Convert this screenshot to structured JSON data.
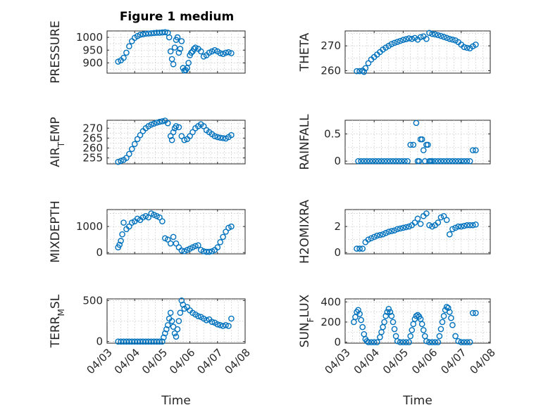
{
  "figure": {
    "title": "Figure 1 medium",
    "marker_color": "#0072BD",
    "grid": true
  },
  "chart_data": [
    {
      "type": "scatter",
      "ylabel": "PRESSURE",
      "xlabel": "",
      "ylim": [
        860,
        1025
      ],
      "yticks": [
        "900",
        "950",
        "1000"
      ],
      "ytick_values": [
        900,
        950,
        1000
      ],
      "xlim": [
        0,
        5
      ],
      "show_xticklabels": false,
      "x": [
        0.4,
        0.5,
        0.6,
        0.7,
        0.8,
        0.9,
        1.0,
        1.1,
        1.2,
        1.3,
        1.4,
        1.5,
        1.6,
        1.7,
        1.8,
        1.9,
        2.0,
        2.1,
        2.2,
        2.25,
        2.3,
        2.35,
        2.4,
        2.45,
        2.5,
        2.55,
        2.6,
        2.65,
        2.7,
        2.75,
        2.8,
        2.85,
        2.9,
        2.95,
        3.0,
        3.05,
        3.1,
        3.15,
        3.2,
        3.3,
        3.4,
        3.5,
        3.6,
        3.7,
        3.8,
        3.9,
        4.0,
        4.1,
        4.2,
        4.3,
        4.4,
        4.5
      ],
      "y": [
        905,
        910,
        920,
        940,
        965,
        985,
        998,
        1005,
        1010,
        1012,
        1014,
        1015,
        1016,
        1017,
        1018,
        1018,
        1019,
        1020,
        1018,
        1000,
        945,
        915,
        895,
        960,
        990,
        1000,
        940,
        955,
        985,
        880,
        870,
        872,
        880,
        900,
        930,
        940,
        945,
        955,
        960,
        955,
        945,
        925,
        930,
        940,
        945,
        950,
        945,
        938,
        935,
        940,
        942,
        938
      ],
      "series_name": ""
    },
    {
      "type": "scatter",
      "ylabel": "THETA",
      "xlabel": "",
      "ylim": [
        259,
        276
      ],
      "yticks": [
        "260",
        "270"
      ],
      "ytick_values": [
        260,
        270
      ],
      "xlim": [
        0,
        5
      ],
      "show_xticklabels": false,
      "x": [
        0.4,
        0.5,
        0.6,
        0.65,
        0.7,
        0.8,
        0.9,
        1.0,
        1.1,
        1.2,
        1.3,
        1.4,
        1.5,
        1.6,
        1.7,
        1.8,
        1.9,
        2.0,
        2.1,
        2.2,
        2.3,
        2.4,
        2.5,
        2.6,
        2.7,
        2.8,
        2.9,
        3.0,
        3.1,
        3.2,
        3.3,
        3.4,
        3.5,
        3.6,
        3.7,
        3.8,
        3.9,
        4.0,
        4.1,
        4.2,
        4.3,
        4.4,
        4.5
      ],
      "y": [
        259.8,
        259.8,
        260.0,
        259.5,
        261,
        263,
        264.5,
        265.5,
        266.5,
        267.5,
        268.5,
        269.3,
        270,
        270.7,
        271.2,
        271.6,
        272.0,
        272.4,
        272.7,
        273,
        272.8,
        273.2,
        272.5,
        273.5,
        273.8,
        272.8,
        275.2,
        274.8,
        274.6,
        274.3,
        274,
        273.6,
        273.2,
        272.8,
        272.5,
        272.2,
        271.5,
        270.5,
        269.5,
        269.2,
        269.0,
        269.8,
        270.5
      ],
      "series_name": ""
    },
    {
      "type": "scatter",
      "ylabel": "AIR_TEMP",
      "xlabel": "",
      "ylim": [
        252,
        274
      ],
      "yticks": [
        "255",
        "260",
        "265",
        "270"
      ],
      "ytick_values": [
        255,
        260,
        265,
        270
      ],
      "xlim": [
        0,
        5
      ],
      "show_xticklabels": false,
      "x": [
        0.4,
        0.5,
        0.6,
        0.7,
        0.8,
        0.9,
        1.0,
        1.1,
        1.2,
        1.3,
        1.4,
        1.5,
        1.6,
        1.7,
        1.8,
        1.9,
        2.0,
        2.1,
        2.2,
        2.3,
        2.35,
        2.4,
        2.45,
        2.5,
        2.6,
        2.7,
        2.8,
        2.9,
        3.0,
        3.1,
        3.2,
        3.3,
        3.4,
        3.5,
        3.6,
        3.7,
        3.8,
        3.9,
        4.0,
        4.1,
        4.2,
        4.3,
        4.4,
        4.5
      ],
      "y": [
        253,
        253.5,
        254,
        255,
        257,
        259.5,
        262,
        264.5,
        266.5,
        268.5,
        270,
        271,
        271.8,
        272.3,
        272.8,
        273.2,
        273.5,
        273.8,
        272.5,
        266,
        264,
        268,
        270,
        271,
        270.5,
        266,
        264,
        264.5,
        266,
        268,
        270,
        271,
        272,
        271,
        269,
        268,
        267,
        266,
        265.5,
        265.2,
        265,
        264.8,
        265.5,
        266.5
      ],
      "series_name": ""
    },
    {
      "type": "scatter",
      "ylabel": "RAINFALL",
      "xlabel": "",
      "ylim": [
        -0.05,
        0.75
      ],
      "yticks": [
        "0",
        "0.5"
      ],
      "ytick_values": [
        0,
        0.5
      ],
      "xlim": [
        0,
        5
      ],
      "show_xticklabels": false,
      "x": [
        0.45,
        0.55,
        0.65,
        0.75,
        0.85,
        0.95,
        1.05,
        1.15,
        1.25,
        1.35,
        1.45,
        1.55,
        1.65,
        1.75,
        1.85,
        1.95,
        2.05,
        2.15,
        2.25,
        2.35,
        2.45,
        2.5,
        2.55,
        2.6,
        2.65,
        2.7,
        2.75,
        2.8,
        2.85,
        2.9,
        2.95,
        3.0,
        3.1,
        3.2,
        3.3,
        3.4,
        3.5,
        3.6,
        3.7,
        3.8,
        3.9,
        4.0,
        4.1,
        4.2,
        4.3,
        4.4,
        4.5
      ],
      "y": [
        0,
        0,
        0,
        0,
        0,
        0,
        0,
        0,
        0,
        0,
        0,
        0,
        0,
        0,
        0,
        0,
        0,
        0,
        0.3,
        0.3,
        0.7,
        0,
        0,
        0.4,
        0.4,
        0.2,
        0,
        0.3,
        0.3,
        0,
        0,
        0,
        0,
        0,
        0,
        0,
        0,
        0,
        0,
        0,
        0,
        0,
        0,
        0,
        0,
        0.2,
        0.2
      ],
      "series_name": ""
    },
    {
      "type": "scatter",
      "ylabel": "MIXDEPTH",
      "xlabel": "",
      "ylim": [
        -50,
        1650
      ],
      "yticks": [
        "0",
        "1000"
      ],
      "ytick_values": [
        0,
        1000
      ],
      "xlim": [
        0,
        5
      ],
      "show_xticklabels": false,
      "x": [
        0.4,
        0.45,
        0.5,
        0.55,
        0.6,
        0.7,
        0.8,
        0.9,
        1.0,
        1.1,
        1.2,
        1.3,
        1.4,
        1.5,
        1.6,
        1.7,
        1.8,
        1.9,
        2.0,
        2.1,
        2.2,
        2.3,
        2.4,
        2.5,
        2.6,
        2.7,
        2.8,
        2.9,
        3.0,
        3.1,
        3.2,
        3.3,
        3.4,
        3.5,
        3.6,
        3.7,
        3.8,
        3.9,
        4.0,
        4.1,
        4.2,
        4.3,
        4.4,
        4.5
      ],
      "y": [
        200,
        300,
        450,
        700,
        1150,
        900,
        1000,
        1150,
        1200,
        1300,
        1250,
        1350,
        1400,
        1350,
        1500,
        1450,
        1400,
        1350,
        1200,
        550,
        500,
        350,
        600,
        350,
        200,
        80,
        50,
        100,
        150,
        200,
        250,
        280,
        100,
        50,
        30,
        30,
        50,
        100,
        200,
        400,
        600,
        800,
        950,
        1000
      ],
      "series_name": ""
    },
    {
      "type": "scatter",
      "ylabel": "H2OMIXRA",
      "xlabel": "",
      "ylim": [
        -0.1,
        3.3
      ],
      "yticks": [
        "0",
        "2"
      ],
      "ytick_values": [
        0,
        2
      ],
      "xlim": [
        0,
        5
      ],
      "show_xticklabels": false,
      "x": [
        0.4,
        0.5,
        0.6,
        0.7,
        0.8,
        0.9,
        1.0,
        1.1,
        1.2,
        1.3,
        1.4,
        1.5,
        1.6,
        1.7,
        1.8,
        1.9,
        2.0,
        2.1,
        2.2,
        2.3,
        2.4,
        2.5,
        2.6,
        2.7,
        2.8,
        2.9,
        3.0,
        3.1,
        3.2,
        3.3,
        3.4,
        3.5,
        3.6,
        3.7,
        3.8,
        3.9,
        4.0,
        4.1,
        4.2,
        4.3,
        4.4,
        4.5
      ],
      "y": [
        0.3,
        0.3,
        0.3,
        0.8,
        1.0,
        1.1,
        1.2,
        1.3,
        1.35,
        1.4,
        1.5,
        1.6,
        1.65,
        1.7,
        1.8,
        1.85,
        1.9,
        1.95,
        2.0,
        2.1,
        2.3,
        2.6,
        2.2,
        2.8,
        3.0,
        2.1,
        2.0,
        2.1,
        2.3,
        2.7,
        2.8,
        2.5,
        1.4,
        1.8,
        1.9,
        2.0,
        2.0,
        2.05,
        2.1,
        2.1,
        2.1,
        2.15
      ],
      "series_name": ""
    },
    {
      "type": "scatter",
      "ylabel": "TERR_MSL",
      "xlabel": "Time",
      "ylim": [
        -20,
        520
      ],
      "yticks": [
        "0",
        "500"
      ],
      "ytick_values": [
        0,
        500
      ],
      "xlim": [
        0,
        5
      ],
      "show_xticklabels": true,
      "x": [
        0.4,
        0.5,
        0.6,
        0.7,
        0.8,
        0.9,
        1.0,
        1.1,
        1.2,
        1.3,
        1.4,
        1.5,
        1.6,
        1.7,
        1.8,
        1.9,
        2.0,
        2.05,
        2.1,
        2.15,
        2.2,
        2.25,
        2.3,
        2.35,
        2.4,
        2.45,
        2.5,
        2.55,
        2.6,
        2.65,
        2.7,
        2.75,
        2.8,
        2.9,
        3.0,
        3.1,
        3.2,
        3.3,
        3.4,
        3.5,
        3.6,
        3.7,
        3.8,
        3.9,
        4.0,
        4.1,
        4.2,
        4.3,
        4.4,
        4.5
      ],
      "y": [
        0,
        0,
        0,
        0,
        0,
        0,
        0,
        0,
        0,
        0,
        0,
        0,
        0,
        0,
        0,
        0,
        0,
        50,
        100,
        150,
        200,
        280,
        350,
        250,
        180,
        100,
        60,
        150,
        250,
        350,
        500,
        450,
        400,
        420,
        380,
        350,
        330,
        310,
        300,
        280,
        260,
        270,
        240,
        230,
        210,
        200,
        190,
        200,
        190,
        280
      ],
      "series_name": ""
    },
    {
      "type": "scatter",
      "ylabel": "SUN_FLUX",
      "xlabel": "Time",
      "ylim": [
        -10,
        430
      ],
      "yticks": [
        "0",
        "200",
        "400"
      ],
      "ytick_values": [
        0,
        200,
        400
      ],
      "xlim": [
        0,
        5
      ],
      "show_xticklabels": true,
      "x": [
        0.3,
        0.35,
        0.4,
        0.45,
        0.5,
        0.55,
        0.6,
        0.65,
        0.7,
        0.75,
        0.8,
        0.9,
        1.0,
        1.1,
        1.2,
        1.25,
        1.3,
        1.35,
        1.4,
        1.45,
        1.5,
        1.55,
        1.6,
        1.65,
        1.7,
        1.75,
        1.8,
        1.9,
        2.0,
        2.1,
        2.2,
        2.25,
        2.3,
        2.35,
        2.4,
        2.45,
        2.5,
        2.55,
        2.6,
        2.65,
        2.7,
        2.75,
        2.8,
        2.9,
        3.0,
        3.1,
        3.2,
        3.25,
        3.3,
        3.35,
        3.4,
        3.45,
        3.5,
        3.55,
        3.6,
        3.65,
        3.7,
        3.8,
        3.9,
        4.0,
        4.1,
        4.2,
        4.3,
        4.4,
        4.5
      ],
      "y": [
        200,
        250,
        300,
        320,
        280,
        220,
        150,
        80,
        30,
        10,
        0,
        0,
        0,
        0,
        50,
        100,
        150,
        200,
        260,
        300,
        330,
        300,
        260,
        200,
        130,
        60,
        10,
        0,
        0,
        0,
        0,
        60,
        120,
        180,
        230,
        260,
        270,
        255,
        230,
        180,
        120,
        60,
        10,
        0,
        0,
        0,
        0,
        60,
        130,
        200,
        260,
        320,
        350,
        340,
        300,
        240,
        170,
        60,
        10,
        0,
        0,
        0,
        0,
        290,
        290
      ],
      "series_name": ""
    }
  ],
  "x_axis": {
    "tick_labels": [
      "04/03",
      "04/04",
      "04/05",
      "04/06",
      "04/07",
      "04/08"
    ],
    "tick_values": [
      0,
      1,
      2,
      3,
      4,
      5
    ],
    "label": "Time"
  }
}
